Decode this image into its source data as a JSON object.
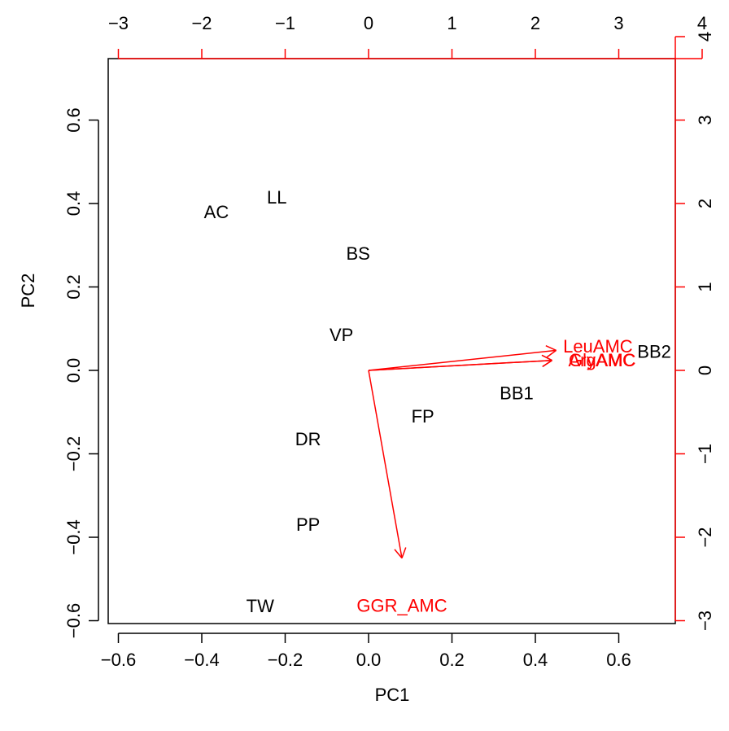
{
  "chart_data": {
    "type": "scatter",
    "subtype": "biplot",
    "xlabel": "PC1",
    "ylabel": "PC2",
    "xlim": [
      -0.6,
      0.7
    ],
    "ylim": [
      -0.6,
      0.7
    ],
    "x_ticks": [
      -0.6,
      -0.4,
      -0.2,
      0.0,
      0.2,
      0.4,
      0.6
    ],
    "y_ticks": [
      -0.6,
      -0.4,
      -0.2,
      0.0,
      0.2,
      0.4,
      0.6
    ],
    "x_tick_labels": [
      "−0.6",
      "−0.4",
      "−0.2",
      "0.0",
      "0.2",
      "0.4",
      "0.6"
    ],
    "y_tick_labels": [
      "−0.6",
      "−0.4",
      "−0.2",
      "0.0",
      "0.2",
      "0.4",
      "0.6"
    ],
    "secondary_x_ticks": [
      -3,
      -2,
      -1,
      0,
      1,
      2,
      3,
      4
    ],
    "secondary_y_ticks": [
      -3,
      -2,
      -1,
      0,
      1,
      2,
      3,
      4
    ],
    "secondary_x_tick_labels": [
      "−3",
      "−2",
      "−1",
      "0",
      "1",
      "2",
      "3",
      "4"
    ],
    "secondary_y_tick_labels": [
      "−3",
      "−2",
      "−1",
      "0",
      "1",
      "2",
      "3",
      "4"
    ],
    "secondary_scale": 5.0,
    "grid": false,
    "observations": [
      {
        "label": "AC",
        "x": -0.365,
        "y": 0.38
      },
      {
        "label": "LL",
        "x": -0.22,
        "y": 0.415
      },
      {
        "label": "BS",
        "x": -0.025,
        "y": 0.28
      },
      {
        "label": "VP",
        "x": -0.065,
        "y": 0.085
      },
      {
        "label": "BB2",
        "x": 0.685,
        "y": 0.045
      },
      {
        "label": "BB1",
        "x": 0.355,
        "y": -0.055
      },
      {
        "label": "FP",
        "x": 0.13,
        "y": -0.11
      },
      {
        "label": "DR",
        "x": -0.145,
        "y": -0.165
      },
      {
        "label": "PP",
        "x": -0.145,
        "y": -0.37
      },
      {
        "label": "TW",
        "x": -0.26,
        "y": -0.565
      }
    ],
    "variables": [
      {
        "label": "LeuAMC",
        "x": 2.25,
        "y": 0.24,
        "label_x": 2.75,
        "label_y": 0.29
      },
      {
        "label": "GlyAMC",
        "x": 2.2,
        "y": 0.12,
        "label_x": 2.8,
        "label_y": 0.12
      },
      {
        "label": "ArgAMC",
        "x": 2.2,
        "y": 0.12,
        "label_x": 2.8,
        "label_y": 0.12
      },
      {
        "label": "GGR_AMC",
        "x": 0.4,
        "y": -2.25,
        "label_x": 0.4,
        "label_y": -2.82
      }
    ],
    "colors": {
      "observations": "#000000",
      "variables": "#ff0000",
      "axes": "#000000"
    }
  }
}
